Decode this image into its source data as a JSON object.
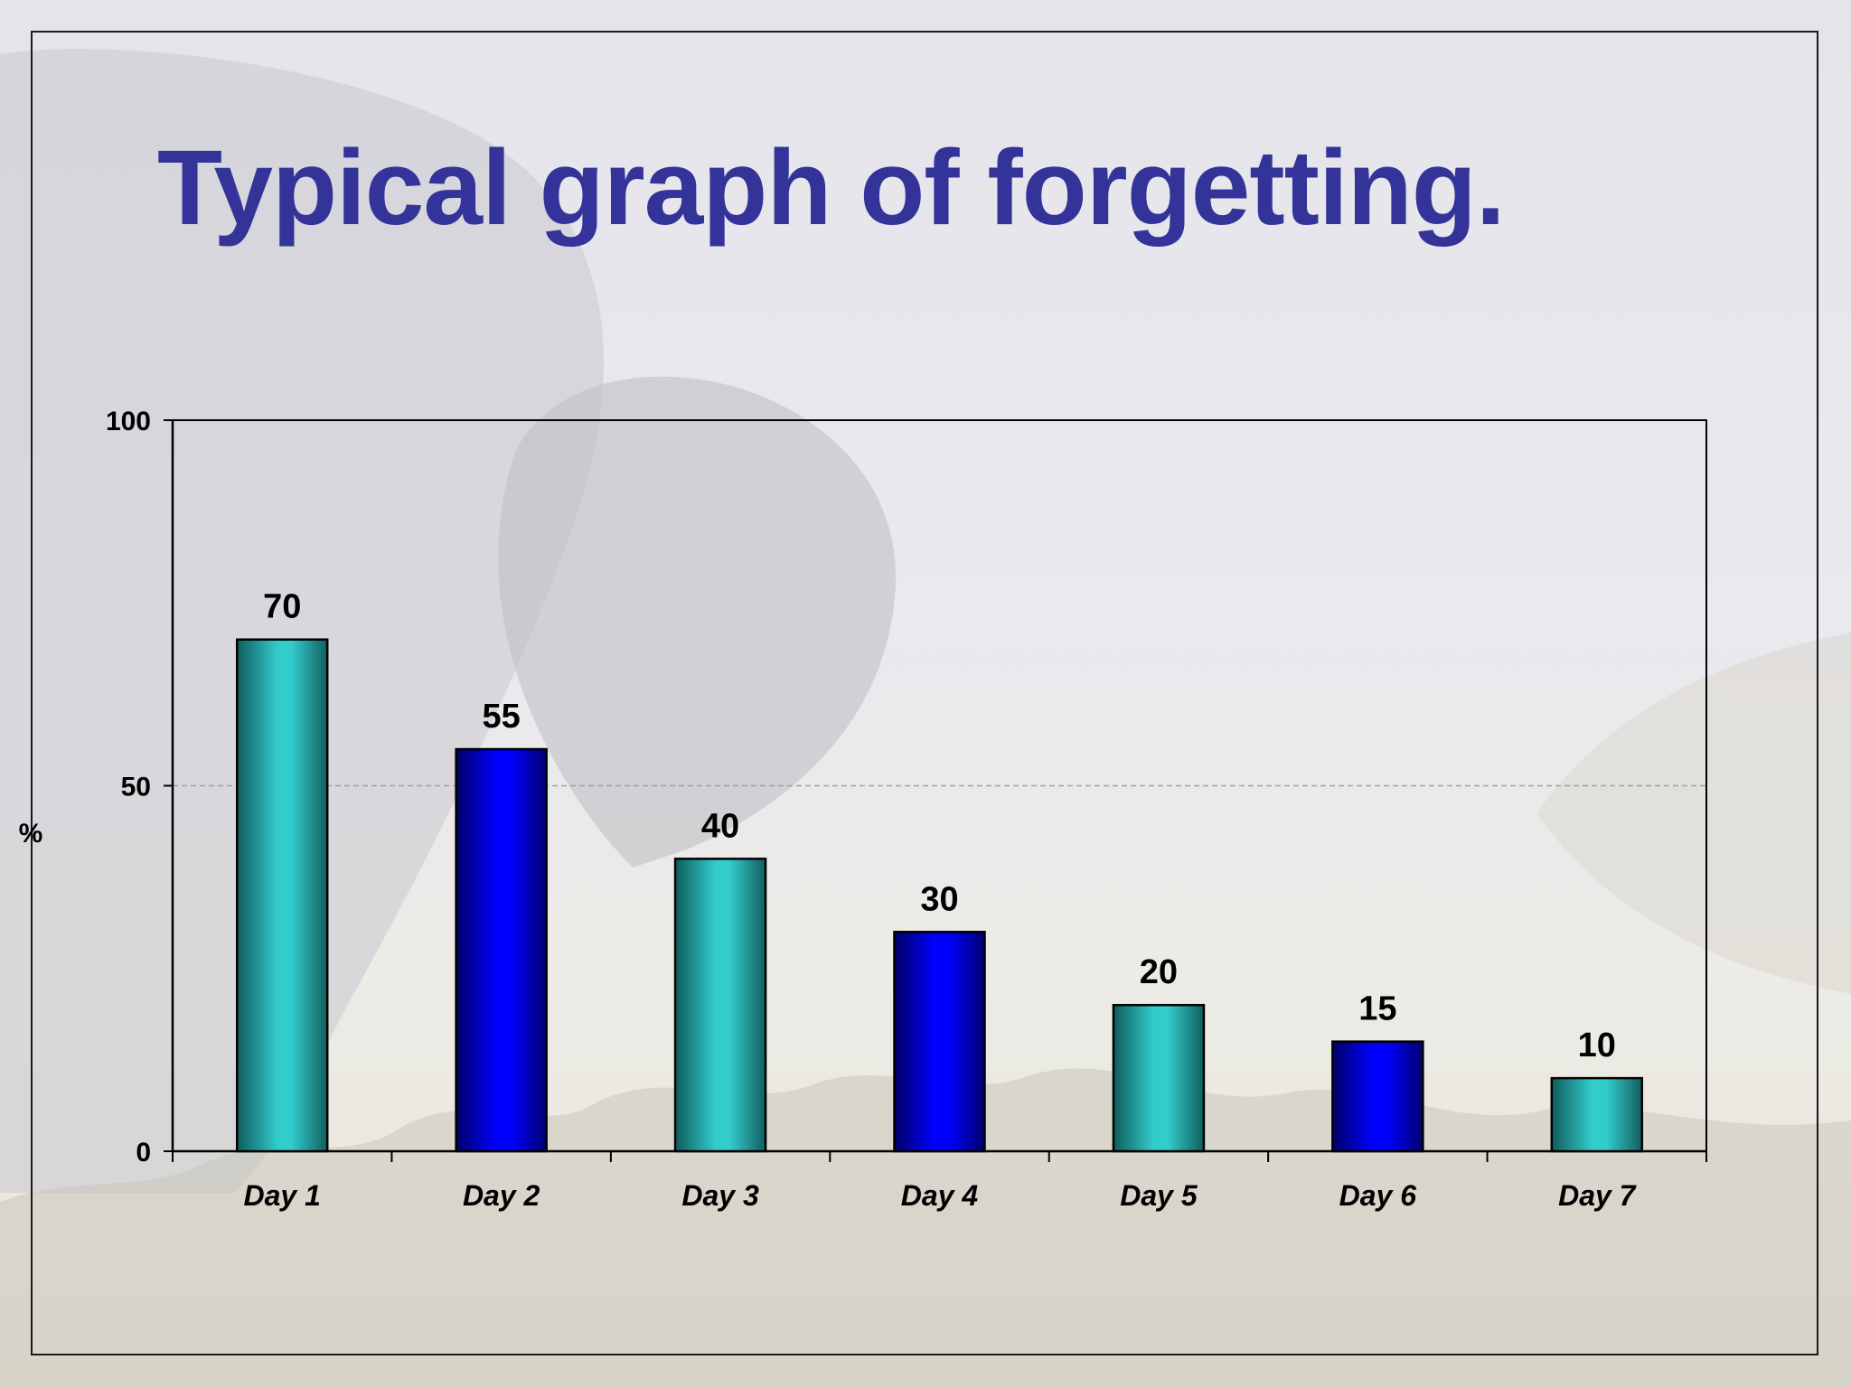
{
  "slide": {
    "title": "Typical graph of forgetting."
  },
  "colors": {
    "title": "#33339a",
    "bar_teal": "#33cccc",
    "bar_teal_dark": "#0f5c5c",
    "bar_blue": "#0000ff",
    "bar_blue_dark": "#000066",
    "gridline": "#a0a0a0"
  },
  "chart_data": {
    "type": "bar",
    "title": "",
    "xlabel": "",
    "ylabel": "%",
    "categories": [
      "Day 1",
      "Day 2",
      "Day 3",
      "Day 4",
      "Day 5",
      "Day 6",
      "Day 7"
    ],
    "values": [
      70,
      55,
      40,
      30,
      20,
      15,
      10
    ],
    "data_labels": [
      "70",
      "55",
      "40",
      "30",
      "20",
      "15",
      "10"
    ],
    "bar_colors": [
      "teal",
      "blue",
      "teal",
      "blue",
      "teal",
      "blue",
      "teal"
    ],
    "ylim": [
      0,
      100
    ],
    "yticks": [
      0,
      50,
      100
    ],
    "ytick_labels": [
      "0",
      "50",
      "100"
    ],
    "gridlines": [
      50
    ],
    "grid": true,
    "legend": "none"
  }
}
